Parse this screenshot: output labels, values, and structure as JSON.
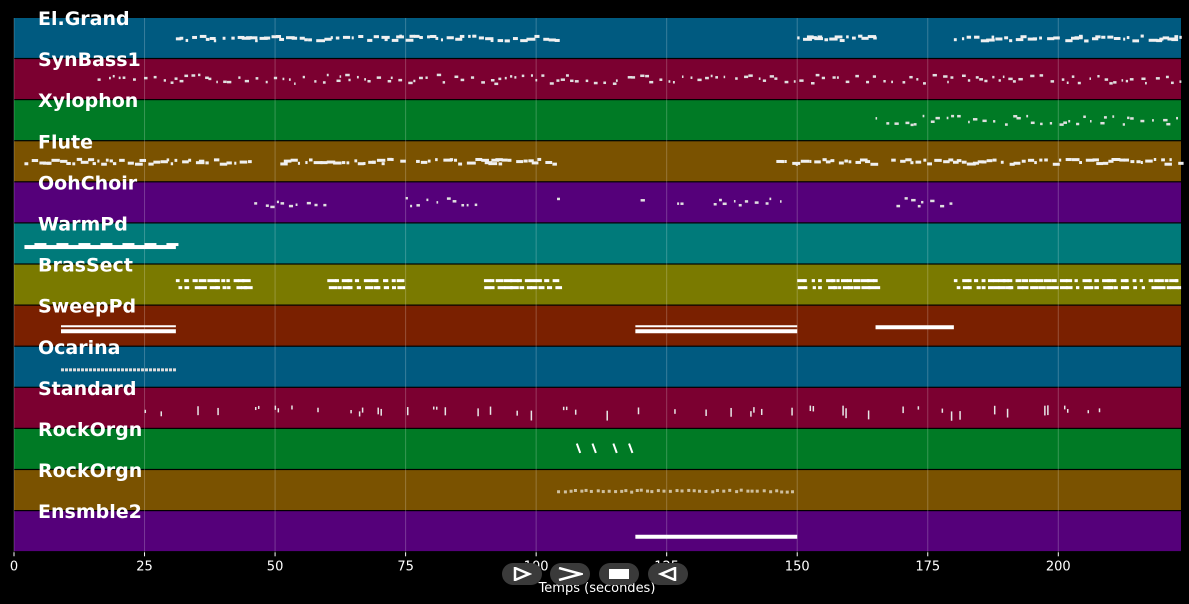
{
  "chart_data": {
    "type": "piano-roll",
    "xlabel": "Temps (secondes)",
    "xlim": [
      0,
      223.5
    ],
    "x_ticks": [
      0,
      25,
      50,
      75,
      100,
      125,
      150,
      175,
      200
    ],
    "grid": true,
    "tracks": [
      {
        "name": "El.Grand",
        "color": "#005a80",
        "segments": [
          [
            31,
            104
          ],
          [
            150,
            165
          ],
          [
            180,
            224
          ]
        ],
        "style": "dense"
      },
      {
        "name": "SynBass1",
        "color": "#7b0030",
        "segments": [
          [
            16,
            224
          ]
        ],
        "style": "sparse"
      },
      {
        "name": "Xylophon",
        "color": "#007a25",
        "segments": [
          [
            165,
            224
          ]
        ],
        "style": "sparse"
      },
      {
        "name": "Flute",
        "color": "#7a5200",
        "segments": [
          [
            2,
            46
          ],
          [
            51,
            75
          ],
          [
            77,
            104
          ],
          [
            146,
            165
          ],
          [
            168,
            224
          ]
        ],
        "style": "dense"
      },
      {
        "name": "OohChoir",
        "color": "#55007a",
        "segments": [
          [
            46,
            60
          ],
          [
            75,
            90
          ],
          [
            104,
            105
          ],
          [
            120,
            121
          ],
          [
            127,
            128
          ],
          [
            134,
            148
          ],
          [
            169,
            180
          ]
        ],
        "style": "sparse"
      },
      {
        "name": "WarmPd",
        "color": "#007a7a",
        "segments": [
          [
            2,
            31
          ]
        ],
        "style": "block"
      },
      {
        "name": "BrasSect",
        "color": "#7a7a00",
        "segments": [
          [
            31,
            45
          ],
          [
            60,
            75
          ],
          [
            90,
            104
          ],
          [
            150,
            165
          ],
          [
            180,
            224
          ]
        ],
        "style": "double"
      },
      {
        "name": "SweepPd",
        "color": "#7a2000",
        "segments": [
          [
            9,
            31
          ],
          [
            119,
            150
          ],
          [
            165,
            180
          ]
        ],
        "style": "bar"
      },
      {
        "name": "Ocarina",
        "color": "#005a80",
        "segments": [
          [
            9,
            31
          ]
        ],
        "style": "zigzag"
      },
      {
        "name": "Standard",
        "color": "#7b0030",
        "segments": [
          [
            25,
            210
          ]
        ],
        "style": "ticks"
      },
      {
        "name": "RockOrgn",
        "color": "#007a25",
        "segments": [
          [
            108,
            109
          ],
          [
            111,
            112
          ],
          [
            115,
            116
          ],
          [
            118,
            119
          ]
        ],
        "style": "spikes"
      },
      {
        "name": "RockOrgn",
        "color": "#7a5200",
        "segments": [
          [
            104,
            149
          ]
        ],
        "style": "dashes"
      },
      {
        "name": "Ensmble2",
        "color": "#55007a",
        "segments": [
          [
            119,
            150
          ]
        ],
        "style": "bar"
      }
    ]
  },
  "controls": [
    {
      "name": "play-button",
      "icon": "play-icon"
    },
    {
      "name": "forward-button",
      "icon": "fast-forward-icon"
    },
    {
      "name": "stop-button",
      "icon": "stop-icon"
    },
    {
      "name": "back-button",
      "icon": "back-icon"
    }
  ]
}
